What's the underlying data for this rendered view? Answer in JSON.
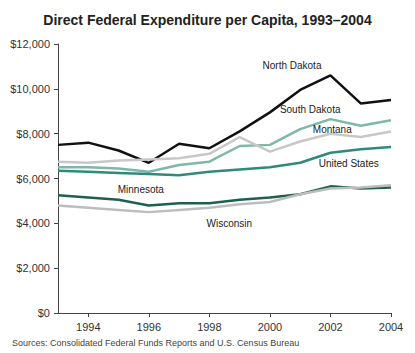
{
  "chart_data": {
    "type": "line",
    "title": "Direct Federal Expenditure per Capita, 1993–2004",
    "source": "Sources: Consolidated Federal Funds Reports and U.S. Census Bureau",
    "x": [
      1993,
      1994,
      1995,
      1996,
      1997,
      1998,
      1999,
      2000,
      2001,
      2002,
      2003,
      2004
    ],
    "series": [
      {
        "name": "North Dakota",
        "color": "#111111",
        "values": [
          7500,
          7600,
          7250,
          6700,
          7550,
          7350,
          8100,
          8950,
          9950,
          10600,
          9350,
          9500
        ]
      },
      {
        "name": "South Dakota",
        "color": "#7fb8a8",
        "values": [
          6500,
          6500,
          6450,
          6300,
          6600,
          6750,
          7450,
          7500,
          8200,
          8650,
          8350,
          8600
        ]
      },
      {
        "name": "Montana",
        "color": "#c8c8c8",
        "values": [
          6750,
          6700,
          6800,
          6850,
          6900,
          7100,
          7850,
          7200,
          7650,
          8000,
          7850,
          8100
        ]
      },
      {
        "name": "United States",
        "color": "#2e8b7a",
        "values": [
          6350,
          6300,
          6250,
          6200,
          6150,
          6300,
          6400,
          6500,
          6700,
          7150,
          7300,
          7400
        ]
      },
      {
        "name": "Minnesota",
        "color": "#1f5f4f",
        "values": [
          5250,
          5150,
          5050,
          4800,
          4900,
          4900,
          5050,
          5150,
          5300,
          5650,
          5550,
          5600
        ]
      },
      {
        "name": "Wisconsin",
        "color": "#bdbdbd",
        "values": [
          4800,
          4700,
          4600,
          4500,
          4600,
          4700,
          4850,
          4950,
          5300,
          5550,
          5600,
          5700
        ]
      }
    ],
    "xlim": [
      1993,
      2004
    ],
    "xticks": [
      1994,
      1996,
      1998,
      2000,
      2002,
      2004
    ],
    "ylim": [
      0,
      12000
    ],
    "yticks": [
      {
        "value": 0,
        "label": "$0"
      },
      {
        "value": 2000,
        "label": "$2,000"
      },
      {
        "value": 4000,
        "label": "$4,000"
      },
      {
        "value": 6000,
        "label": "$6,000"
      },
      {
        "value": 8000,
        "label": "$8,000"
      },
      {
        "value": 10000,
        "label": "$10,000"
      },
      {
        "value": 12000,
        "label": "$12,000"
      }
    ],
    "grid": false
  }
}
